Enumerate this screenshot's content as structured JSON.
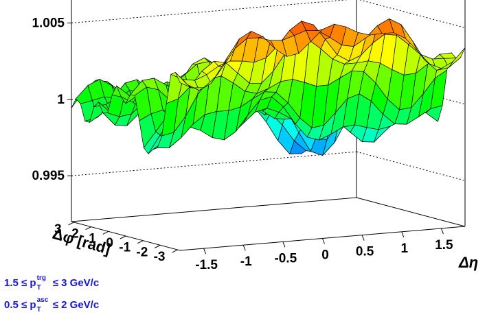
{
  "chart_data": {
    "type": "surface",
    "title": "",
    "xlabel": "Δη",
    "ylabel": "Δφ [rad]",
    "zlabel": "",
    "x_ticks": [
      "-1.5",
      "-1",
      "-0.5",
      "0",
      "0.5",
      "1",
      "1.5"
    ],
    "y_ticks": [
      "3",
      "2",
      "1",
      "0",
      "-1",
      "-2",
      "-3"
    ],
    "z_ticks": [
      "0.995",
      "1",
      "1.005"
    ],
    "xlim": [
      -1.8,
      1.8
    ],
    "ylim": [
      -3.14,
      3.14
    ],
    "zlim": [
      0.992,
      1.007
    ],
    "color_scale": "rainbow",
    "grid": true,
    "surface_summary": {
      "away_side_ridge_dphi_pi": 1.0055,
      "near_side_ridge_dphi_0": 1.0025,
      "minimum_dphi_1_5": 0.9945,
      "typical_edges": 1.0
    }
  },
  "annotations": {
    "trg_prefix": "1.5 ≤ p",
    "trg_sub": "T",
    "trg_sup": "trg",
    "trg_suffix": " ≤ 3 GeV/c",
    "asc_prefix": "0.5 ≤ p",
    "asc_sub": "T",
    "asc_sup": "asc",
    "asc_suffix": " ≤ 2 GeV/c"
  }
}
